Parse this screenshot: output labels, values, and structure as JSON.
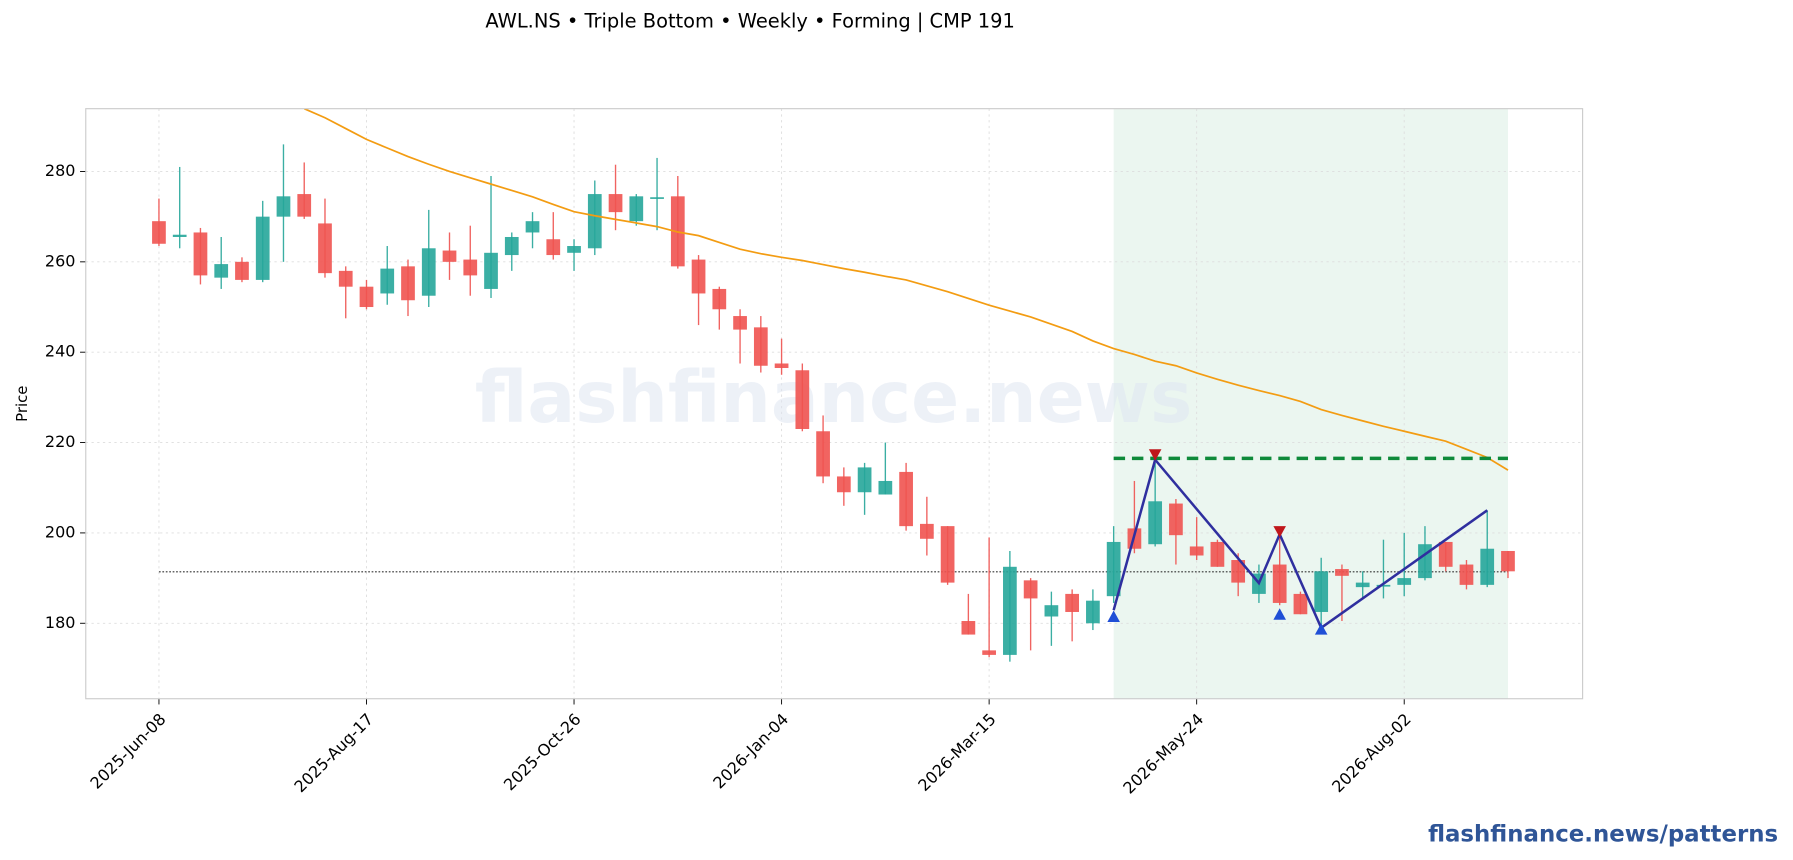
{
  "chart_data": {
    "type": "candlestick",
    "title": "AWL.NS  •  Triple Bottom  •  Weekly  •  Forming  |  CMP 191",
    "ylabel": "Price",
    "watermark": "flashfinance.news",
    "footer": "flashfinance.news/patterns",
    "categories": [
      "2025-Jun-08",
      null,
      null,
      null,
      null,
      null,
      null,
      null,
      null,
      null,
      "2025-Aug-17",
      null,
      null,
      null,
      null,
      null,
      null,
      null,
      null,
      null,
      "2025-Oct-26",
      null,
      null,
      null,
      null,
      null,
      null,
      null,
      null,
      null,
      "2026-Jan-04",
      null,
      null,
      null,
      null,
      null,
      null,
      null,
      null,
      null,
      "2026-Mar-15",
      null,
      null,
      null,
      null,
      null,
      null,
      null,
      null,
      null,
      "2026-May-24",
      null,
      null,
      null,
      null,
      null,
      null,
      null,
      null,
      null,
      "2026-Aug-02",
      null,
      null,
      null,
      null,
      null
    ],
    "open": [
      269,
      265.5,
      266.5,
      256.5,
      260,
      256,
      270,
      275,
      268.5,
      258,
      254.5,
      253,
      259,
      252.5,
      262.5,
      260.5,
      254,
      261.5,
      266.5,
      265,
      262,
      263,
      275,
      269,
      274,
      274.5,
      260.5,
      254,
      248,
      245.5,
      237.5,
      236,
      222.5,
      212.5,
      209,
      208.5,
      213.5,
      202,
      201.5,
      180.5,
      174,
      173,
      189.5,
      181.5,
      186.5,
      180,
      186,
      201,
      197.5,
      206.5,
      197,
      198,
      194,
      186.5,
      193,
      186.5,
      182.5,
      192,
      188,
      188.2,
      188.5,
      190,
      198,
      193,
      188.5,
      196
    ],
    "high": [
      274,
      281,
      267.5,
      265.5,
      261,
      273.5,
      286,
      282,
      274,
      259,
      256,
      263.5,
      260.5,
      271.5,
      266.5,
      268,
      279,
      266.5,
      271,
      271,
      265,
      278,
      281.5,
      275,
      283,
      279,
      261.5,
      254.5,
      249.5,
      248,
      243,
      237.5,
      226,
      214.5,
      215.5,
      220,
      215.5,
      208,
      201.5,
      186.5,
      199,
      196,
      190,
      187,
      187.5,
      187.5,
      201.5,
      211.5,
      215.5,
      207.5,
      203.5,
      198.5,
      195.5,
      193,
      201,
      187,
      194.5,
      193,
      191.5,
      198.5,
      200,
      201.5,
      198,
      194,
      205,
      196
    ],
    "low": [
      263.5,
      263,
      255,
      254,
      255.5,
      255.5,
      260,
      269.5,
      256.5,
      247.5,
      249.5,
      250.5,
      248,
      250,
      256,
      252.5,
      252,
      258,
      263,
      260.5,
      258,
      261.5,
      267,
      268,
      267,
      258.5,
      246,
      245,
      237.5,
      235.5,
      235,
      222.5,
      211,
      206,
      204,
      208.5,
      200.5,
      195,
      188.5,
      177.5,
      172.5,
      171.5,
      174,
      175,
      176,
      178.5,
      184.5,
      195.5,
      197,
      193,
      194,
      192.5,
      186,
      184.5,
      184,
      182,
      178.5,
      180.5,
      185.5,
      185.5,
      186,
      189.5,
      191.5,
      187.5,
      188,
      190
    ],
    "close": [
      264,
      266,
      257,
      259.5,
      256,
      270,
      274.5,
      270,
      257.5,
      254.5,
      250,
      258.5,
      251.5,
      263,
      260,
      257,
      262,
      265.5,
      269,
      261.5,
      263.5,
      275,
      271,
      274.5,
      274.3,
      259,
      253,
      249.5,
      245,
      237,
      236.5,
      223,
      212.5,
      209,
      214.5,
      211.5,
      201.5,
      198.7,
      189,
      177.5,
      173,
      192.5,
      185.5,
      184,
      182.5,
      185,
      198,
      196.5,
      207,
      199.5,
      195,
      192.5,
      189,
      191,
      184.5,
      182,
      191.5,
      190.5,
      189,
      188.5,
      190,
      197.5,
      192.5,
      188.5,
      196.5,
      191.5
    ],
    "up_color": "#26a69a",
    "down_color": "#ef5350",
    "sma_color": "#f39c12",
    "sma_values": [
      null,
      null,
      null,
      null,
      null,
      null,
      null,
      293.9,
      291.9,
      289.5,
      287.1,
      285.2,
      283.3,
      281.6,
      280,
      278.6,
      277.2,
      275.8,
      274.4,
      272.7,
      271.1,
      270.2,
      269.4,
      268.6,
      267.8,
      266.6,
      265.8,
      264.3,
      262.8,
      261.8,
      261,
      260.3,
      259.4,
      258.5,
      257.7,
      256.8,
      256,
      254.7,
      253.4,
      251.9,
      250.4,
      249.1,
      247.8,
      246.2,
      244.6,
      242.5,
      240.8,
      239.5,
      238,
      237,
      235.4,
      234,
      232.7,
      231.5,
      230.4,
      229.1,
      227.3,
      226,
      224.8,
      223.6,
      222.5,
      221.4,
      220.3,
      218.5,
      216.7,
      213.9
    ],
    "cmp_line": 191.4,
    "pattern_zone_x": [
      46,
      65
    ],
    "pattern_zone_color": "#e3f2ea",
    "resistance": 216.5,
    "resistance_color": "#0e8a3a",
    "zigzag_color": "#2f2f9f",
    "zigzag_x": [
      46,
      48,
      53,
      54,
      56,
      64
    ],
    "zigzag_values": [
      182.9,
      216.2,
      188.9,
      199.7,
      179,
      205
    ],
    "trough_color": "#1f4fd6",
    "trough_x": [
      46,
      54,
      56
    ],
    "trough_values": [
      181.3,
      181.8,
      178.5
    ],
    "peak_color": "#c0171b",
    "peak_x": [
      48,
      54
    ],
    "peak_values": [
      217.5,
      200.5
    ],
    "ylim": [
      163.3,
      293.9
    ],
    "yticks": [
      180,
      200,
      220,
      240,
      260,
      280
    ],
    "grid": true
  }
}
